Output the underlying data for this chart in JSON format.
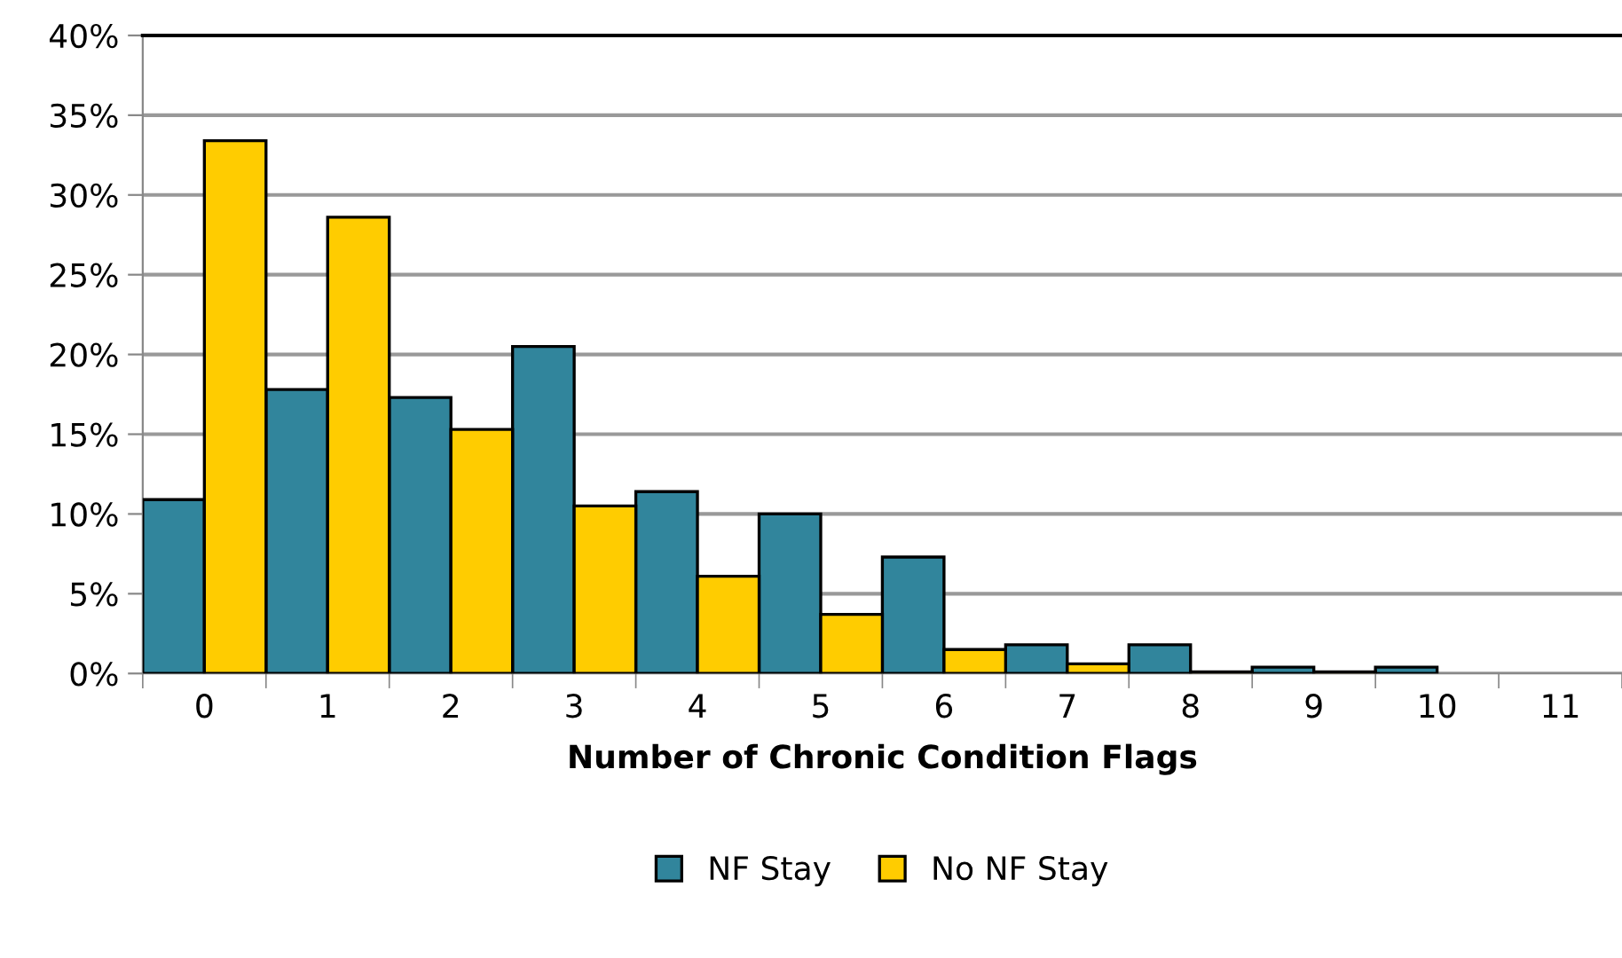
{
  "chart_data": {
    "type": "bar",
    "xlabel": "Number of Chronic Condition Flags",
    "categories": [
      "0",
      "1",
      "2",
      "3",
      "4",
      "5",
      "6",
      "7",
      "8",
      "9",
      "10",
      "11"
    ],
    "series": [
      {
        "name": "NF Stay",
        "color": "#31859c",
        "values": [
          10.9,
          17.8,
          17.3,
          20.5,
          11.4,
          10.0,
          7.3,
          1.8,
          1.8,
          0.4,
          0.4,
          null
        ]
      },
      {
        "name": "No NF Stay",
        "color": "#ffcc00",
        "values": [
          33.4,
          28.6,
          15.3,
          10.5,
          6.1,
          3.7,
          1.5,
          0.6,
          0.1,
          0.1,
          null,
          null
        ]
      }
    ],
    "ylim": [
      0,
      40
    ],
    "yticks": [
      {
        "value": 0,
        "label": "0%"
      },
      {
        "value": 5,
        "label": "5%"
      },
      {
        "value": 10,
        "label": "10%"
      },
      {
        "value": 15,
        "label": "15%"
      },
      {
        "value": 20,
        "label": "20%"
      },
      {
        "value": 25,
        "label": "25%"
      },
      {
        "value": 30,
        "label": "30%"
      },
      {
        "value": 35,
        "label": "35%"
      },
      {
        "value": 40,
        "label": "40%"
      }
    ],
    "grid": "y",
    "legend": "bottom"
  }
}
